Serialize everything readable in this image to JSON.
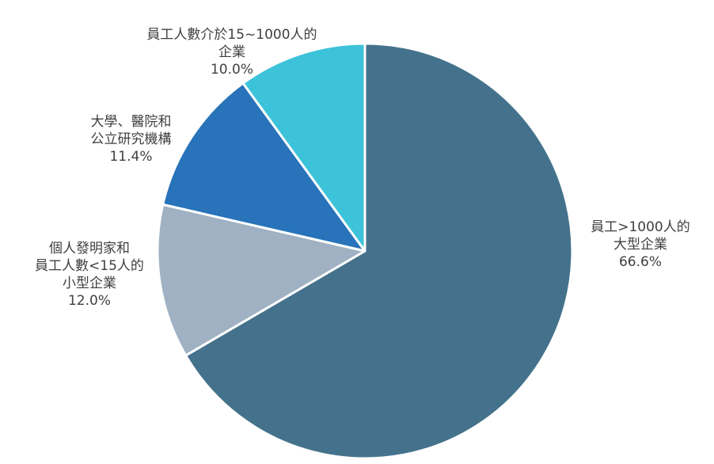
{
  "chart_data": {
    "type": "pie",
    "title": "",
    "start_angle_deg": 0,
    "direction": "clockwise",
    "slices": [
      {
        "label_lines": [
          "員工>1000人的",
          "大型企業"
        ],
        "value": 66.6,
        "value_label": "66.6%",
        "color": "#44728c"
      },
      {
        "label_lines": [
          "個人發明家和",
          "員工人數<15人的",
          "小型企業"
        ],
        "value": 12.0,
        "value_label": "12.0%",
        "color": "#9fb1c3"
      },
      {
        "label_lines": [
          "大學、醫院和",
          "公立研究機構"
        ],
        "value": 11.4,
        "value_label": "11.4%",
        "color": "#2873ba"
      },
      {
        "label_lines": [
          "員工人數介於15~1000人的",
          "企業"
        ],
        "value": 10.0,
        "value_label": "10.0%",
        "color": "#3cc3da"
      }
    ]
  }
}
